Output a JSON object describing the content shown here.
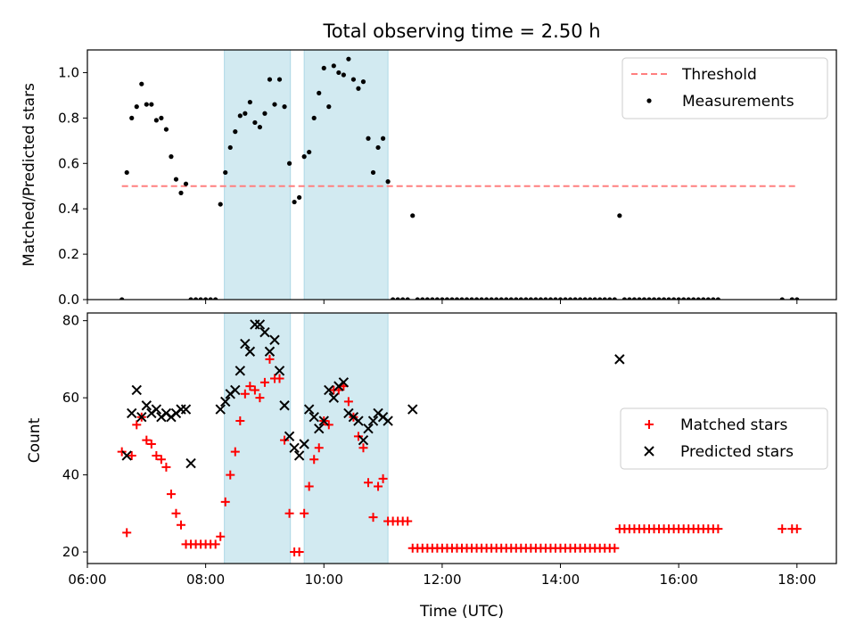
{
  "figure": {
    "title": "Total observing time = 2.50 h",
    "xlabel": "Time (UTC)"
  },
  "colors": {
    "threshold": "#ff7f7f",
    "measurements": "#000000",
    "matched": "#ff0000",
    "predicted": "#000000",
    "span": "#add8e6"
  },
  "chart_data": [
    {
      "type": "scatter",
      "panel": "top",
      "ylabel": "Matched/Predicted stars",
      "xlim": [
        "06:00",
        "18:40"
      ],
      "ylim": [
        0,
        1.1
      ],
      "x_ticks": [
        "06:00",
        "08:00",
        "10:00",
        "12:00",
        "14:00",
        "16:00",
        "18:00"
      ],
      "y_ticks": [
        "0.0",
        "0.2",
        "0.4",
        "0.6",
        "0.8",
        "1.0"
      ],
      "shaded_intervals": [
        [
          "08:19",
          "09:26"
        ],
        [
          "09:40",
          "11:05"
        ]
      ],
      "legend": {
        "position": "upper right",
        "entries": [
          "Threshold",
          "Measurements"
        ]
      },
      "series": [
        {
          "name": "Threshold",
          "style": "dashed line",
          "x": [
            "06:35",
            "18:00"
          ],
          "y": [
            0.5,
            0.5
          ]
        },
        {
          "name": "Measurements",
          "style": "dot",
          "x": [
            "06:35",
            "06:40",
            "06:45",
            "06:50",
            "06:55",
            "07:00",
            "07:05",
            "07:10",
            "07:15",
            "07:20",
            "07:25",
            "07:30",
            "07:35",
            "07:40",
            "07:45",
            "07:50",
            "07:55",
            "08:00",
            "08:05",
            "08:10",
            "08:15",
            "08:20",
            "08:25",
            "08:30",
            "08:35",
            "08:40",
            "08:45",
            "08:50",
            "08:55",
            "09:00",
            "09:05",
            "09:10",
            "09:15",
            "09:20",
            "09:25",
            "09:30",
            "09:35",
            "09:40",
            "09:45",
            "09:50",
            "09:55",
            "10:00",
            "10:05",
            "10:10",
            "10:15",
            "10:20",
            "10:25",
            "10:30",
            "10:35",
            "10:40",
            "10:45",
            "10:50",
            "10:55",
            "11:00",
            "11:05",
            "11:10",
            "11:15",
            "11:20",
            "11:25",
            "11:30",
            "11:35",
            "11:40",
            "11:45",
            "11:50",
            "11:55",
            "12:00",
            "12:05",
            "12:10",
            "12:15",
            "12:20",
            "12:25",
            "12:30",
            "12:35",
            "12:40",
            "12:45",
            "12:50",
            "12:55",
            "13:00",
            "13:05",
            "13:10",
            "13:15",
            "13:20",
            "13:25",
            "13:30",
            "13:35",
            "13:40",
            "13:45",
            "13:50",
            "13:55",
            "14:00",
            "14:05",
            "14:10",
            "14:15",
            "14:20",
            "14:25",
            "14:30",
            "14:35",
            "14:40",
            "14:45",
            "14:50",
            "14:55",
            "15:00",
            "15:05",
            "15:10",
            "15:15",
            "15:20",
            "15:25",
            "15:30",
            "15:35",
            "15:40",
            "15:45",
            "15:50",
            "15:55",
            "16:00",
            "16:05",
            "16:10",
            "16:15",
            "16:20",
            "16:25",
            "16:30",
            "16:35",
            "16:40",
            "17:45",
            "17:55",
            "18:00"
          ],
          "y": [
            0.0,
            0.56,
            0.8,
            0.85,
            0.95,
            0.86,
            0.86,
            0.79,
            0.8,
            0.75,
            0.63,
            0.53,
            0.47,
            0.51,
            0.0,
            0.0,
            0.0,
            0.0,
            0.0,
            0.0,
            0.42,
            0.56,
            0.67,
            0.74,
            0.81,
            0.82,
            0.87,
            0.78,
            0.76,
            0.82,
            0.97,
            0.86,
            0.97,
            0.85,
            0.6,
            0.43,
            0.45,
            0.63,
            0.65,
            0.8,
            0.91,
            1.02,
            0.85,
            1.03,
            1.0,
            0.99,
            1.06,
            0.97,
            0.93,
            0.96,
            0.71,
            0.56,
            0.67,
            0.71,
            0.52,
            0.0,
            0.0,
            0.0,
            0.0,
            0.37,
            0.0,
            0.0,
            0.0,
            0.0,
            0.0,
            0.0,
            0.0,
            0.0,
            0.0,
            0.0,
            0.0,
            0.0,
            0.0,
            0.0,
            0.0,
            0.0,
            0.0,
            0.0,
            0.0,
            0.0,
            0.0,
            0.0,
            0.0,
            0.0,
            0.0,
            0.0,
            0.0,
            0.0,
            0.0,
            0.0,
            0.0,
            0.0,
            0.0,
            0.0,
            0.0,
            0.0,
            0.0,
            0.0,
            0.0,
            0.0,
            0.0,
            0.37,
            0.0,
            0.0,
            0.0,
            0.0,
            0.0,
            0.0,
            0.0,
            0.0,
            0.0,
            0.0,
            0.0,
            0.0,
            0.0,
            0.0,
            0.0,
            0.0,
            0.0,
            0.0,
            0.0,
            0.0,
            0.0,
            0.0,
            0.0
          ]
        }
      ]
    },
    {
      "type": "scatter",
      "panel": "bottom",
      "ylabel": "Count",
      "xlim": [
        "06:00",
        "18:40"
      ],
      "ylim": [
        17,
        82
      ],
      "x_ticks": [
        "06:00",
        "08:00",
        "10:00",
        "12:00",
        "14:00",
        "16:00",
        "18:00"
      ],
      "y_ticks": [
        "20",
        "40",
        "60",
        "80"
      ],
      "shaded_intervals": [
        [
          "08:19",
          "09:26"
        ],
        [
          "09:40",
          "11:05"
        ]
      ],
      "legend": {
        "position": "center right",
        "entries": [
          "Matched stars",
          "Predicted stars"
        ]
      },
      "series": [
        {
          "name": "Matched stars",
          "marker": "+",
          "x": [
            "06:35",
            "06:40",
            "06:45",
            "06:50",
            "06:55",
            "07:00",
            "07:05",
            "07:10",
            "07:15",
            "07:20",
            "07:25",
            "07:30",
            "07:35",
            "07:40",
            "07:45",
            "07:50",
            "07:55",
            "08:00",
            "08:05",
            "08:10",
            "08:15",
            "08:20",
            "08:25",
            "08:30",
            "08:35",
            "08:40",
            "08:45",
            "08:50",
            "08:55",
            "09:00",
            "09:05",
            "09:10",
            "09:15",
            "09:20",
            "09:25",
            "09:30",
            "09:35",
            "09:40",
            "09:45",
            "09:50",
            "09:55",
            "10:00",
            "10:05",
            "10:10",
            "10:15",
            "10:20",
            "10:25",
            "10:30",
            "10:35",
            "10:40",
            "10:45",
            "10:50",
            "10:55",
            "11:00",
            "11:05",
            "11:10",
            "11:15",
            "11:20",
            "11:25",
            "11:30",
            "11:35",
            "11:40",
            "11:45",
            "11:50",
            "11:55",
            "12:00",
            "12:05",
            "12:10",
            "12:15",
            "12:20",
            "12:25",
            "12:30",
            "12:35",
            "12:40",
            "12:45",
            "12:50",
            "12:55",
            "13:00",
            "13:05",
            "13:10",
            "13:15",
            "13:20",
            "13:25",
            "13:30",
            "13:35",
            "13:40",
            "13:45",
            "13:50",
            "13:55",
            "14:00",
            "14:05",
            "14:10",
            "14:15",
            "14:20",
            "14:25",
            "14:30",
            "14:35",
            "14:40",
            "14:45",
            "14:50",
            "14:55",
            "15:00",
            "15:05",
            "15:10",
            "15:15",
            "15:20",
            "15:25",
            "15:30",
            "15:35",
            "15:40",
            "15:45",
            "15:50",
            "15:55",
            "16:00",
            "16:05",
            "16:10",
            "16:15",
            "16:20",
            "16:25",
            "16:30",
            "16:35",
            "16:40",
            "17:45",
            "17:55",
            "18:00"
          ],
          "y": [
            46,
            25,
            45,
            53,
            55,
            49,
            48,
            45,
            44,
            42,
            35,
            30,
            27,
            22,
            22,
            22,
            22,
            22,
            22,
            22,
            24,
            33,
            40,
            46,
            54,
            61,
            63,
            62,
            60,
            64,
            70,
            65,
            65,
            49,
            30,
            20,
            20,
            30,
            37,
            44,
            47,
            54,
            53,
            62,
            62,
            63,
            59,
            55,
            50,
            47,
            38,
            29,
            37,
            39,
            28,
            28,
            28,
            28,
            28,
            21,
            21,
            21,
            21,
            21,
            21,
            21,
            21,
            21,
            21,
            21,
            21,
            21,
            21,
            21,
            21,
            21,
            21,
            21,
            21,
            21,
            21,
            21,
            21,
            21,
            21,
            21,
            21,
            21,
            21,
            21,
            21,
            21,
            21,
            21,
            21,
            21,
            21,
            21,
            21,
            21,
            21,
            26,
            26,
            26,
            26,
            26,
            26,
            26,
            26,
            26,
            26,
            26,
            26,
            26,
            26,
            26,
            26,
            26,
            26,
            26,
            26,
            26,
            26,
            26,
            26
          ]
        },
        {
          "name": "Predicted stars",
          "marker": "x",
          "x": [
            "06:40",
            "06:45",
            "06:50",
            "06:55",
            "07:00",
            "07:05",
            "07:10",
            "07:15",
            "07:20",
            "07:25",
            "07:30",
            "07:35",
            "07:40",
            "07:45",
            "08:15",
            "08:20",
            "08:25",
            "08:30",
            "08:35",
            "08:40",
            "08:45",
            "08:50",
            "08:55",
            "09:00",
            "09:05",
            "09:10",
            "09:15",
            "09:20",
            "09:25",
            "09:30",
            "09:35",
            "09:40",
            "09:45",
            "09:50",
            "09:55",
            "10:00",
            "10:05",
            "10:10",
            "10:15",
            "10:20",
            "10:25",
            "10:30",
            "10:35",
            "10:40",
            "10:45",
            "10:50",
            "10:55",
            "11:00",
            "11:05",
            "11:30",
            "15:00"
          ],
          "y": [
            45,
            56,
            62,
            55,
            58,
            56,
            57,
            55,
            56,
            55,
            56,
            57,
            57,
            43,
            57,
            59,
            61,
            62,
            67,
            74,
            72,
            79,
            79,
            77,
            72,
            75,
            67,
            58,
            50,
            47,
            45,
            48,
            57,
            55,
            52,
            54,
            62,
            60,
            63,
            64,
            56,
            55,
            54,
            49,
            52,
            54,
            56,
            55,
            54,
            57,
            70
          ]
        }
      ]
    }
  ]
}
